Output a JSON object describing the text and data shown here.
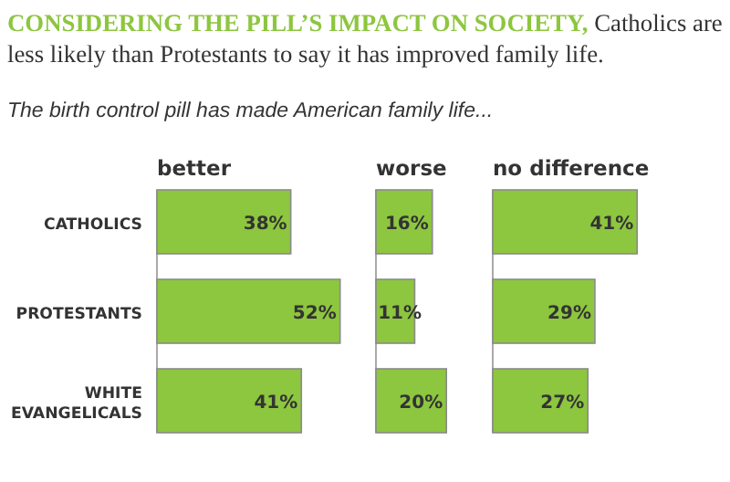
{
  "chart_data": [
    {
      "type": "bar",
      "orientation": "horizontal",
      "title": "better",
      "categories": [
        "CATHOLICS",
        "PROTESTANTS",
        "WHITE EVANGELICALS"
      ],
      "values": [
        38,
        52,
        41
      ],
      "value_labels": [
        "38%",
        "52%",
        "41%"
      ],
      "color": "#8dc63f",
      "tick_labels": "y",
      "annotations": [
        "CONSIDERING THE PILL’S IMPACT ON SOCIETY,",
        "Catholics are less likely than Protestants to say it has improved family life.",
        "The birth control pill has made American family life..."
      ]
    },
    {
      "type": "bar",
      "orientation": "horizontal",
      "title": "worse",
      "values": [
        16,
        11,
        20
      ],
      "value_labels": [
        "16%",
        "11%",
        "20%"
      ],
      "color": "#8dc63f"
    },
    {
      "type": "bar",
      "orientation": "horizontal",
      "title": "no difference",
      "values": [
        41,
        29,
        27
      ],
      "value_labels": [
        "41%",
        "29%",
        "27%"
      ],
      "color": "#8dc63f"
    }
  ]
}
